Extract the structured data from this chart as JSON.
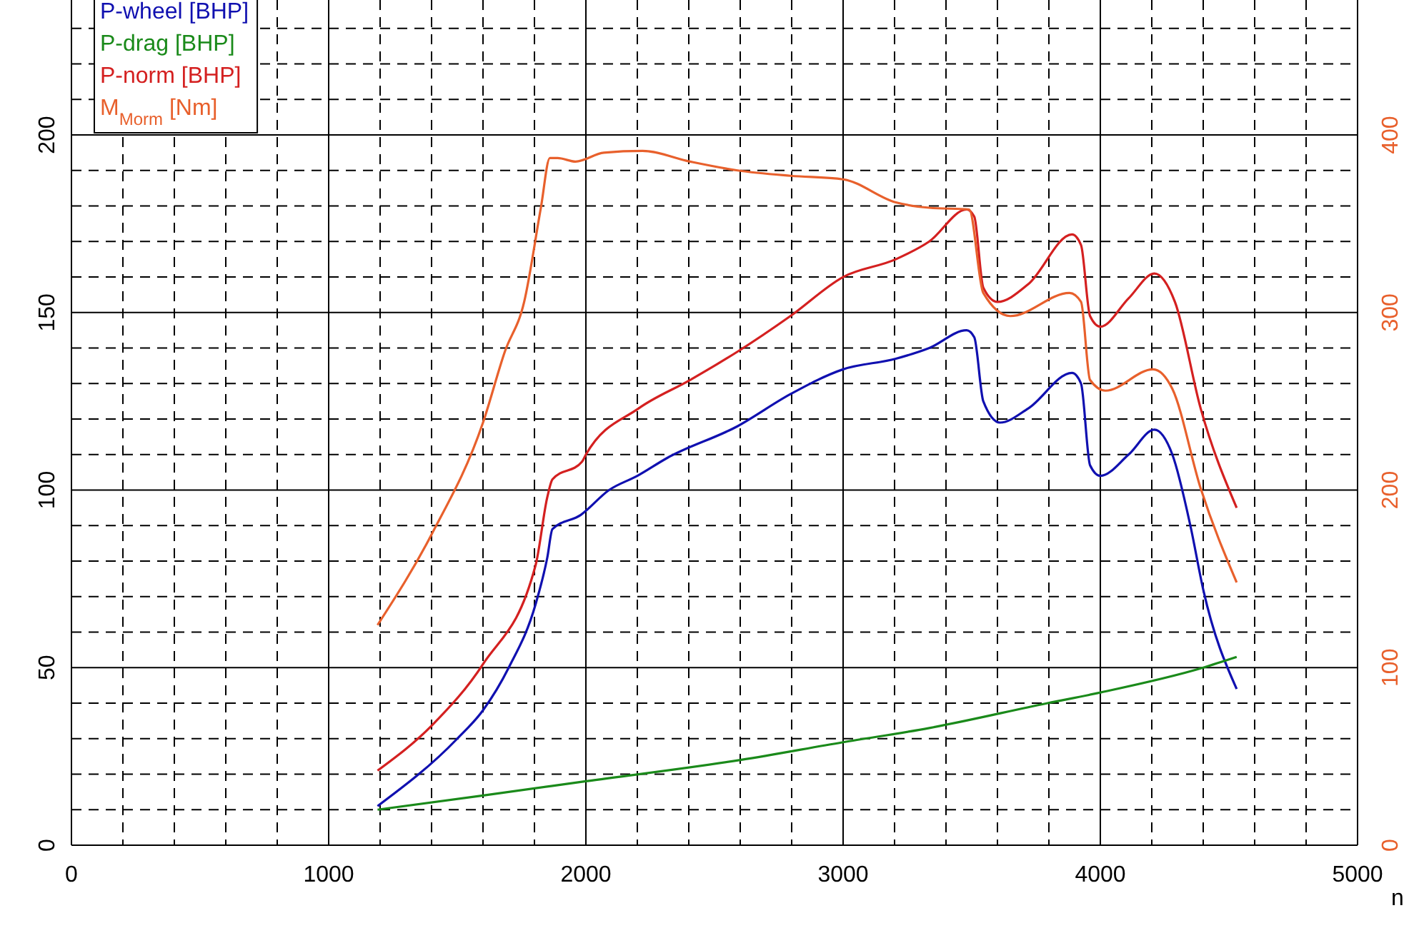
{
  "chart_data": {
    "type": "line",
    "xlabel": "n",
    "xlim": [
      0,
      5000
    ],
    "ylim": [
      0,
      238
    ],
    "y2lim": [
      0,
      476
    ],
    "xticks": [
      0,
      {
        "value": 200,
        "label": null
      },
      {
        "value": 400,
        "label": null
      },
      {
        "value": 600,
        "label": null
      },
      {
        "value": 800,
        "label": null
      },
      1000,
      {
        "value": 1200,
        "label": null
      },
      {
        "value": 1400,
        "label": null
      },
      {
        "value": 1600,
        "label": null
      },
      {
        "value": 1800,
        "label": null
      },
      2000,
      {
        "value": 2200,
        "label": null
      },
      {
        "value": 2400,
        "label": null
      },
      {
        "value": 2600,
        "label": null
      },
      {
        "value": 2800,
        "label": null
      },
      3000,
      {
        "value": 3200,
        "label": null
      },
      {
        "value": 3400,
        "label": null
      },
      {
        "value": 3600,
        "label": null
      },
      {
        "value": 3800,
        "label": null
      },
      4000,
      {
        "value": 4200,
        "label": null
      },
      {
        "value": 4400,
        "label": null
      },
      {
        "value": 4600,
        "label": null
      },
      {
        "value": 4800,
        "label": null
      },
      5000
    ],
    "yticks": [
      0,
      {
        "value": 10,
        "label": null
      },
      {
        "value": 20,
        "label": null
      },
      {
        "value": 30,
        "label": null
      },
      {
        "value": 40,
        "label": null
      },
      50,
      {
        "value": 60,
        "label": null
      },
      {
        "value": 70,
        "label": null
      },
      {
        "value": 80,
        "label": null
      },
      {
        "value": 90,
        "label": null
      },
      100,
      {
        "value": 110,
        "label": null
      },
      {
        "value": 120,
        "label": null
      },
      {
        "value": 130,
        "label": null
      },
      {
        "value": 140,
        "label": null
      },
      150,
      {
        "value": 160,
        "label": null
      },
      {
        "value": 170,
        "label": null
      },
      {
        "value": 180,
        "label": null
      },
      {
        "value": 190,
        "label": null
      },
      200,
      {
        "value": 210,
        "label": null
      },
      {
        "value": 220,
        "label": null
      },
      {
        "value": 230,
        "label": null
      }
    ],
    "y2ticks": [
      0,
      100,
      200,
      300,
      400
    ],
    "grid": true,
    "legend": "top left",
    "marker": "none",
    "line_style": "solid",
    "series": [
      {
        "name": "P-wheel [BHP]",
        "color": "#1010b0",
        "x": [
          1190,
          1500,
          1600,
          1700,
          1805,
          1850,
          1870,
          1980,
          2090,
          2200,
          2315,
          2590,
          2795,
          3000,
          3205,
          3335,
          3480,
          3510,
          3545,
          3610,
          3720,
          3890,
          3925,
          3960,
          4000,
          4110,
          4210,
          4280,
          4350,
          4400,
          4530
        ],
        "values": [
          11,
          30,
          38,
          50,
          68,
          81,
          89,
          93,
          100,
          104,
          109,
          118,
          127,
          134,
          137,
          140,
          145,
          143,
          125,
          119,
          123,
          133,
          130,
          107,
          104,
          110,
          117,
          110,
          90,
          72,
          44
        ]
      },
      {
        "name": "P-drag [BHP]",
        "color": "#1a8a1a",
        "x": [
          1190,
          1600,
          2000,
          2600,
          3000,
          3335,
          3795,
          4000,
          4400,
          4530
        ],
        "values": [
          10,
          14,
          18,
          24,
          29,
          33,
          40,
          43,
          50,
          53
        ]
      },
      {
        "name": "P-norm [BHP]",
        "color": "#d42020",
        "x": [
          1190,
          1405,
          1600,
          1805,
          1850,
          1870,
          1985,
          2000,
          2205,
          2405,
          2590,
          2795,
          3000,
          3205,
          3335,
          3480,
          3510,
          3545,
          3600,
          3720,
          3890,
          3925,
          3960,
          4000,
          4110,
          4210,
          4290,
          4390,
          4530
        ],
        "values": [
          21,
          34,
          51,
          79,
          98,
          103,
          108,
          110,
          123,
          131,
          139,
          149,
          160,
          165,
          170,
          179,
          177,
          157,
          153,
          158,
          172,
          169,
          149,
          146,
          154,
          161,
          153,
          123,
          95
        ]
      },
      {
        "name": "M$_{Morm}$ [Nm]",
        "color": "#e8602c",
        "axis": "y2",
        "x": [
          1190,
          1400,
          1600,
          1685,
          1760,
          1825,
          1860,
          1890,
          1960,
          2070,
          2220,
          2405,
          2590,
          2795,
          3000,
          3205,
          3335,
          3490,
          3545,
          3650,
          3880,
          3925,
          3960,
          4020,
          4205,
          4280,
          4390,
          4530
        ],
        "values": [
          124,
          175,
          238,
          278,
          306,
          359,
          387,
          387,
          385,
          390,
          391,
          385,
          380,
          377,
          375,
          362,
          359,
          358,
          311,
          298,
          311,
          306,
          262,
          256,
          268,
          257,
          201,
          148
        ]
      }
    ]
  }
}
